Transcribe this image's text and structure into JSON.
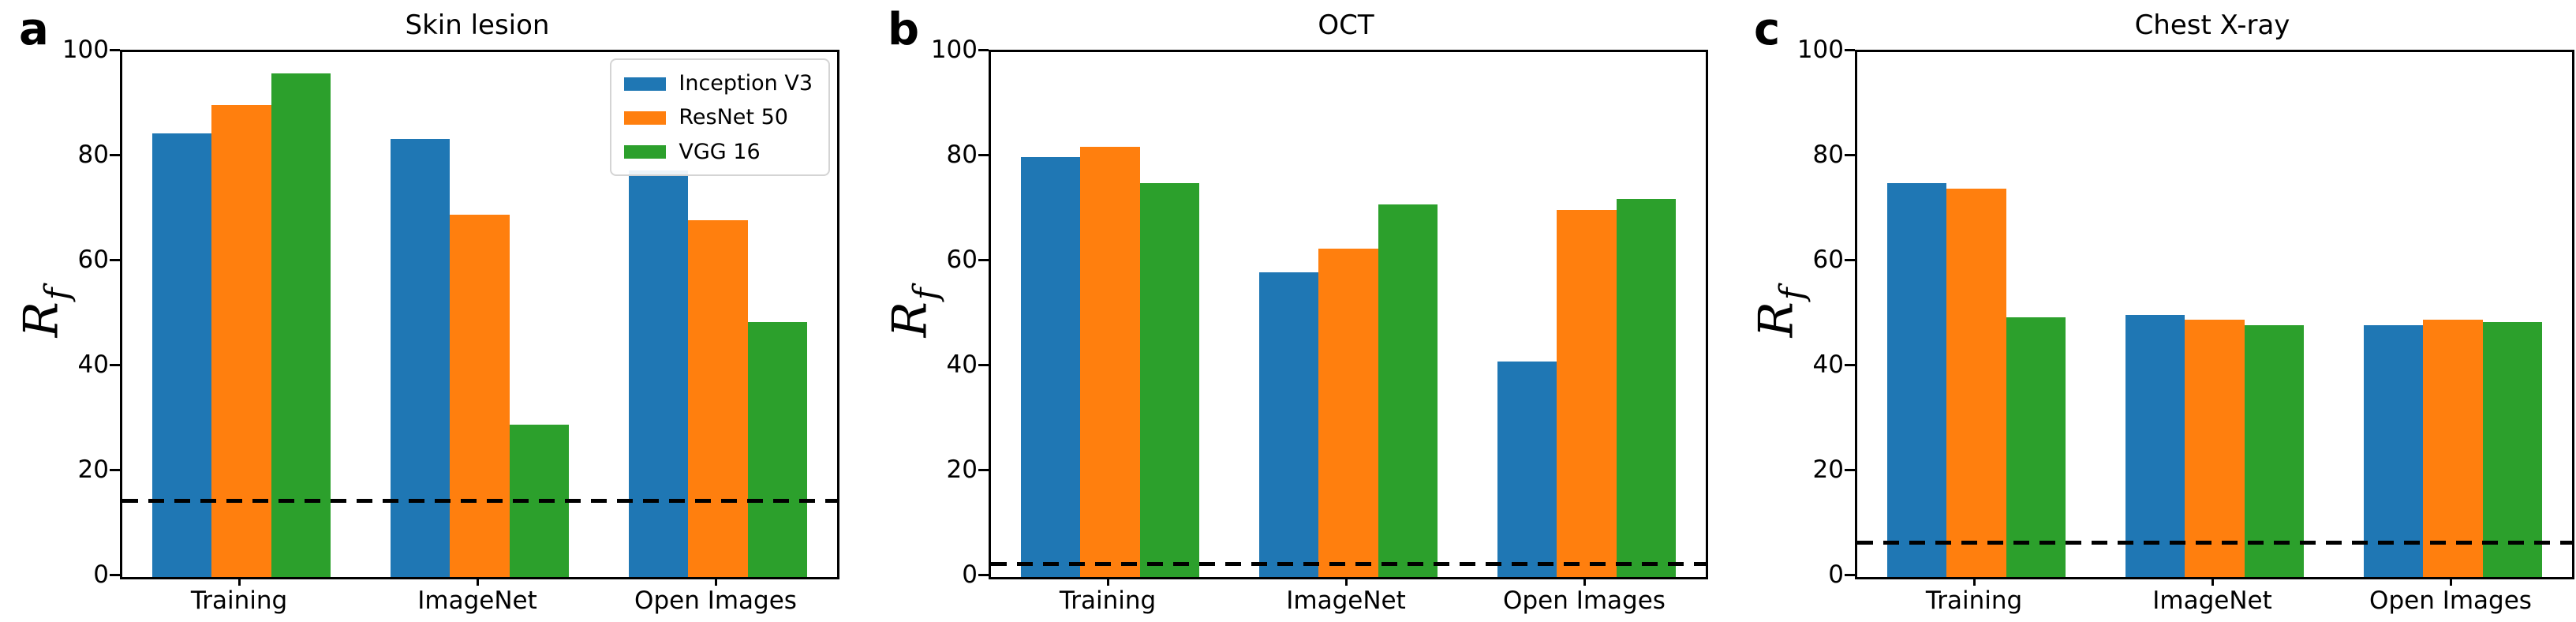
{
  "figure": {
    "kind": "three-panel grouped bar figure",
    "background": "#ffffff",
    "text_color": "#000000"
  },
  "chart_data": [
    {
      "type": "bar",
      "panel_label": "a",
      "title": "Skin lesion",
      "categories": [
        "Training",
        "ImageNet",
        "Open Images"
      ],
      "series": [
        {
          "name": "Inception V3",
          "color": "#1f77b4",
          "values": [
            84.5,
            83.5,
            77.5
          ]
        },
        {
          "name": "ResNet 50",
          "color": "#ff7f0e",
          "values": [
            90,
            69,
            68
          ]
        },
        {
          "name": "VGG 16",
          "color": "#2ca02c",
          "values": [
            96,
            29,
            48.5
          ]
        }
      ],
      "dashed_baseline": 14.5,
      "ylabel": "R_f",
      "ylim": [
        0,
        100
      ],
      "yticks": [
        0,
        20,
        40,
        60,
        80,
        100
      ],
      "grid": false,
      "legend": {
        "show": true,
        "position": "upper right",
        "entries": [
          "Inception V3",
          "ResNet 50",
          "VGG 16"
        ]
      }
    },
    {
      "type": "bar",
      "panel_label": "b",
      "title": "OCT",
      "categories": [
        "Training",
        "ImageNet",
        "Open Images"
      ],
      "series": [
        {
          "name": "Inception V3",
          "color": "#1f77b4",
          "values": [
            80,
            58,
            41
          ]
        },
        {
          "name": "ResNet 50",
          "color": "#ff7f0e",
          "values": [
            82,
            62.5,
            70
          ]
        },
        {
          "name": "VGG 16",
          "color": "#2ca02c",
          "values": [
            75,
            71,
            72
          ]
        }
      ],
      "dashed_baseline": 2.5,
      "ylabel": "R_f",
      "ylim": [
        0,
        100
      ],
      "yticks": [
        0,
        20,
        40,
        60,
        80,
        100
      ],
      "grid": false,
      "legend": {
        "show": false,
        "position": null,
        "entries": []
      }
    },
    {
      "type": "bar",
      "panel_label": "c",
      "title": "Chest X-ray",
      "categories": [
        "Training",
        "ImageNet",
        "Open Images"
      ],
      "series": [
        {
          "name": "Inception V3",
          "color": "#1f77b4",
          "values": [
            75,
            50,
            48
          ]
        },
        {
          "name": "ResNet 50",
          "color": "#ff7f0e",
          "values": [
            74,
            49,
            49
          ]
        },
        {
          "name": "VGG 16",
          "color": "#2ca02c",
          "values": [
            49.5,
            48,
            48.5
          ]
        }
      ],
      "dashed_baseline": 6.5,
      "ylabel": "R_f",
      "ylim": [
        0,
        100
      ],
      "yticks": [
        0,
        20,
        40,
        60,
        80,
        100
      ],
      "grid": false,
      "legend": {
        "show": false,
        "position": null,
        "entries": []
      }
    }
  ],
  "series_colors": {
    "Inception V3": "#1f77b4",
    "ResNet 50": "#ff7f0e",
    "VGG 16": "#2ca02c"
  }
}
